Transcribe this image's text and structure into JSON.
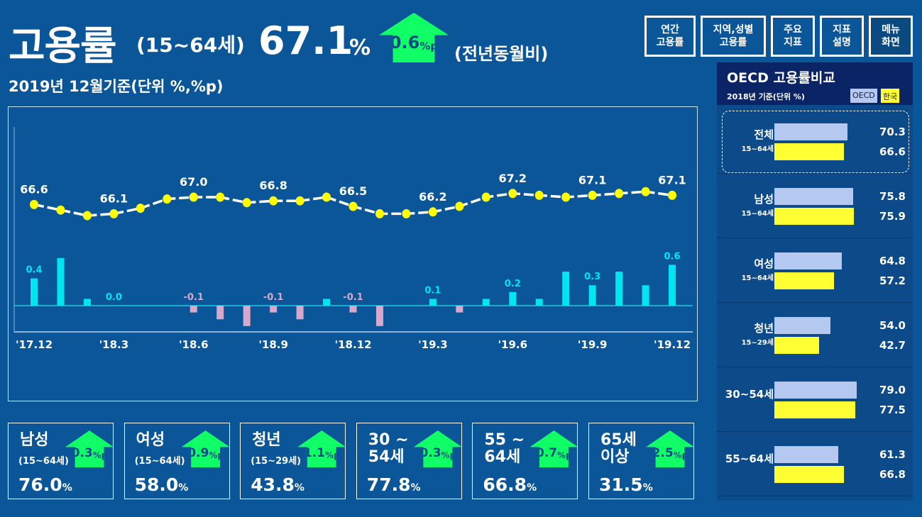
{
  "header": {
    "title": "고용률",
    "age_range": "(15~64세)",
    "value": "67.1",
    "unit": "%",
    "change": "0.6",
    "change_unit": "%p",
    "compare": "(전년동월비)",
    "subtitle": "2019년 12월기준(단위 %,%p)"
  },
  "nav": [
    {
      "label": "연간\n고용률"
    },
    {
      "label": "지역,성별\n고용률"
    },
    {
      "label": "주요\n지표"
    },
    {
      "label": "지표\n설명"
    },
    {
      "label": "메뉴\n화면"
    }
  ],
  "chart_data": {
    "type": "line+bar",
    "x": [
      "'17.12",
      "'18.1",
      "'18.2",
      "'18.3",
      "'18.4",
      "'18.5",
      "'18.6",
      "'18.7",
      "'18.8",
      "'18.9",
      "'18.10",
      "'18.11",
      "'18.12",
      "'19.1",
      "'19.2",
      "'19.3",
      "'19.4",
      "'19.5",
      "'19.6",
      "'19.7",
      "'19.8",
      "'19.9",
      "'19.10",
      "'19.11",
      "'19.12"
    ],
    "tick_labels": [
      "'17.12",
      "'18.3",
      "'18.6",
      "'18.9",
      "'18.12",
      "'19.3",
      "'19.6",
      "'19.9",
      "'19.12"
    ],
    "series": [
      {
        "name": "고용률",
        "type": "line",
        "values": [
          66.6,
          66.3,
          66.0,
          66.1,
          66.4,
          66.9,
          67.0,
          67.0,
          66.7,
          66.8,
          66.8,
          67.0,
          66.5,
          66.1,
          66.1,
          66.2,
          66.5,
          67.0,
          67.2,
          67.1,
          67.0,
          67.1,
          67.2,
          67.3,
          67.1
        ],
        "labeled": [
          0,
          3,
          6,
          9,
          12,
          15,
          18,
          21,
          24
        ]
      },
      {
        "name": "전년동월비",
        "type": "bar",
        "values": [
          0.4,
          0.7,
          0.1,
          0.0,
          0.0,
          0.0,
          -0.1,
          -0.2,
          -0.3,
          -0.1,
          -0.2,
          0.1,
          -0.1,
          -0.3,
          0.0,
          0.1,
          -0.1,
          0.1,
          0.2,
          0.1,
          0.5,
          0.3,
          0.5,
          0.3,
          0.6
        ],
        "labeled": [
          0,
          3,
          6,
          9,
          12,
          15,
          18,
          21,
          24
        ]
      }
    ],
    "colors": {
      "line": "#ffffff",
      "marker": "#ffff00",
      "pos": "#00e5f0",
      "neg": "#d8a8cc"
    }
  },
  "cards": [
    {
      "name": "남성",
      "age": "(15~64세)",
      "value": "76.0",
      "unit": "%",
      "change": "0.3",
      "cu": "%p"
    },
    {
      "name": "여성",
      "age": "(15~64세)",
      "value": "58.0",
      "unit": "%",
      "change": "0.9",
      "cu": "%p"
    },
    {
      "name": "청년",
      "age": "(15~29세)",
      "value": "43.8",
      "unit": "%",
      "change": "1.1",
      "cu": "%p"
    },
    {
      "name": "30 ~\n54세",
      "age": "",
      "value": "77.8",
      "unit": "%",
      "change": "0.3",
      "cu": "%p"
    },
    {
      "name": "55 ~\n64세",
      "age": "",
      "value": "66.8",
      "unit": "%",
      "change": "0.7",
      "cu": "%p"
    },
    {
      "name": "65세\n이상",
      "age": "",
      "value": "31.5",
      "unit": "%",
      "change": "2.5",
      "cu": "%p"
    }
  ],
  "oecd": {
    "title": "OECD 고용률비교",
    "subtitle": "2018년 기준(단위 %)",
    "legend_oecd": "OECD",
    "legend_korea": "한국",
    "groups": [
      {
        "label": "전체",
        "age": "15~64세",
        "oecd": 70.3,
        "korea": 66.6
      },
      {
        "label": "남성",
        "age": "15~64세",
        "oecd": 75.8,
        "korea": 75.9
      },
      {
        "label": "여성",
        "age": "15~64세",
        "oecd": 64.8,
        "korea": 57.2
      },
      {
        "label": "청년",
        "age": "15~29세",
        "oecd": 54.0,
        "korea": 42.7
      },
      {
        "label": "30~54세",
        "age": "",
        "oecd": 79.0,
        "korea": 77.5
      },
      {
        "label": "55~64세",
        "age": "",
        "oecd": 61.3,
        "korea": 66.8
      }
    ]
  }
}
